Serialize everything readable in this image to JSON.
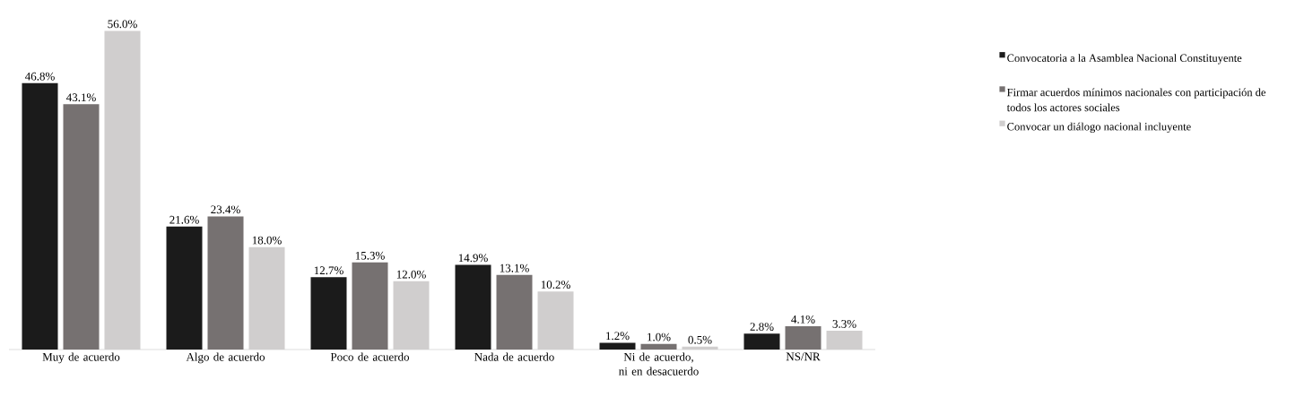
{
  "chart_data": {
    "type": "bar",
    "categories": [
      "Muy de acuerdo",
      "Algo de acuerdo",
      "Poco de acuerdo",
      "Nada de acuerdo",
      "Ni de acuerdo, ni en desacuerdo",
      "NS/NR"
    ],
    "series": [
      {
        "name": "Convocatoria a la Asamblea Nacional Constituyente",
        "color": "#1b1b1b",
        "values": [
          46.8,
          21.6,
          12.7,
          14.9,
          1.2,
          2.8
        ],
        "value_labels": [
          "46.8%",
          "21.6%",
          "12.7%",
          "14.9%",
          "1.2%",
          "2.8%"
        ]
      },
      {
        "name": "Firmar acuerdos mínimos nacionales con participación de todos los actores sociales",
        "color": "#767171",
        "values": [
          43.1,
          23.4,
          15.3,
          13.1,
          1.0,
          4.1
        ],
        "value_labels": [
          "43.1%",
          "23.4%",
          "15.3%",
          "13.1%",
          "1.0%",
          "4.1%"
        ]
      },
      {
        "name": "Convocar un diálogo nacional incluyente",
        "color": "#d0cece",
        "values": [
          56.0,
          18.0,
          12.0,
          10.2,
          0.5,
          3.3
        ],
        "value_labels": [
          "56.0%",
          "18.0%",
          "12.0%",
          "10.2%",
          "0.5%",
          "3.3%"
        ]
      }
    ],
    "legend": "right"
  }
}
